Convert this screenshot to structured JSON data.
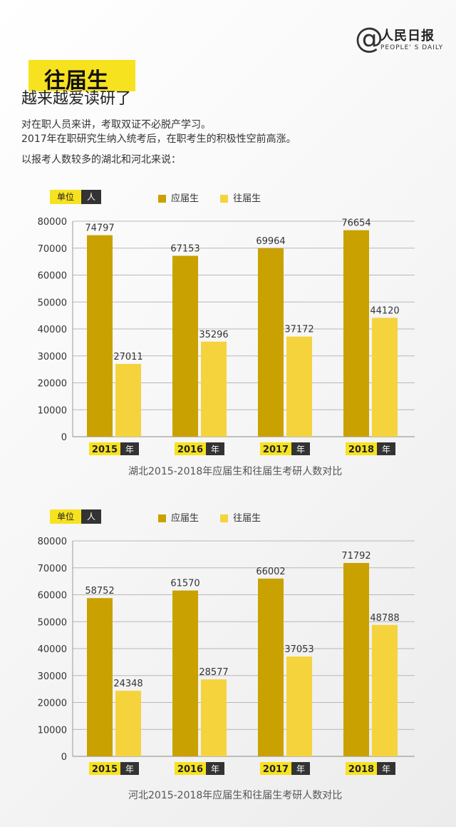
{
  "logo": {
    "symbol": "@",
    "name_cn": "人民日报",
    "name_en": "PEOPLE' S DAILY"
  },
  "header": {
    "title": "往届生",
    "subtitle": "越来越爱读研了",
    "lines": [
      "对在职人员来讲，考取双证不必脱产学习。",
      "2017年在职研究生纳入统考后，在职考生的积极性空前高涨。",
      "以报考人数较多的湖北和河北来说："
    ]
  },
  "colors": {
    "fresh": "#c9a100",
    "prior": "#f5d33c",
    "accent": "#f7e21f",
    "dark": "#333333"
  },
  "chart_data": [
    {
      "type": "bar",
      "title": "湖北2015-2018年应届生和往届生考研人数对比",
      "unit_label": "单位",
      "unit_value": "人",
      "categories": [
        "2015",
        "2016",
        "2017",
        "2018"
      ],
      "category_suffix": "年",
      "series": [
        {
          "name": "应届生",
          "values": [
            74797,
            67153,
            69964,
            76654
          ]
        },
        {
          "name": "往届生",
          "values": [
            27011,
            35296,
            37172,
            44120
          ]
        }
      ],
      "ylim": [
        0,
        80000
      ],
      "yticks": [
        0,
        10000,
        20000,
        30000,
        40000,
        50000,
        60000,
        70000,
        80000
      ],
      "grid": true,
      "legend": "top"
    },
    {
      "type": "bar",
      "title": "河北2015-2018年应届生和往届生考研人数对比",
      "unit_label": "单位",
      "unit_value": "人",
      "categories": [
        "2015",
        "2016",
        "2017",
        "2018"
      ],
      "category_suffix": "年",
      "series": [
        {
          "name": "应届生",
          "values": [
            58752,
            61570,
            66002,
            71792
          ]
        },
        {
          "name": "往届生",
          "values": [
            24348,
            28577,
            37053,
            48788
          ]
        }
      ],
      "ylim": [
        0,
        80000
      ],
      "yticks": [
        0,
        10000,
        20000,
        30000,
        40000,
        50000,
        60000,
        70000,
        80000
      ],
      "grid": true,
      "legend": "top"
    }
  ]
}
